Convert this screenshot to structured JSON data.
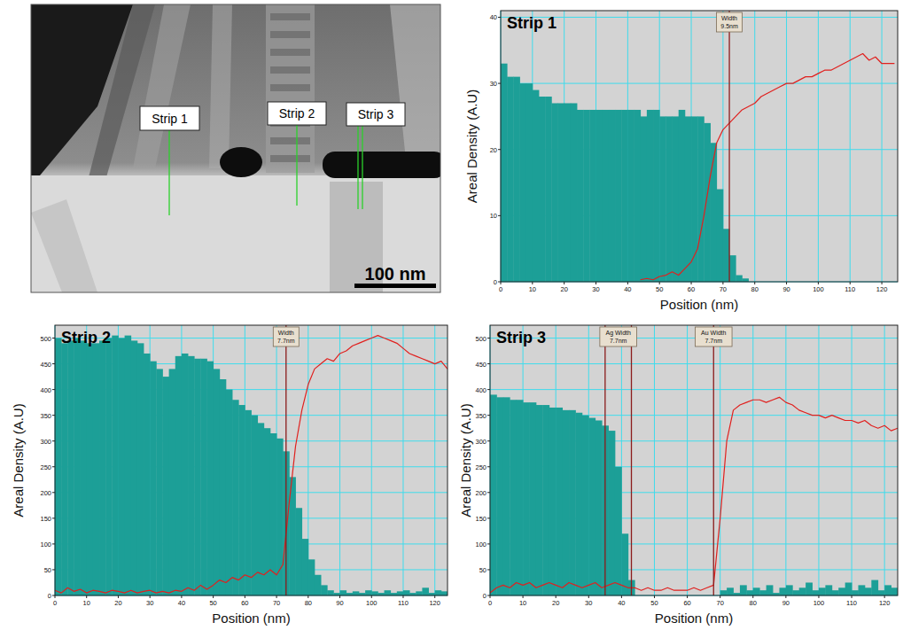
{
  "micrograph": {
    "labels": [
      "Strip 1",
      "Strip 2",
      "Strip 3"
    ],
    "scale_bar": "100 nm"
  },
  "chart_data": [
    {
      "type": "bar",
      "title": "Strip 1",
      "x_label": "Position (nm)",
      "y_label": "Areal Density (A.U)",
      "grid": true,
      "xlim": [
        0,
        125
      ],
      "ylim": [
        0,
        41
      ],
      "xticks": [
        0,
        10,
        20,
        30,
        40,
        50,
        60,
        70,
        80,
        90,
        100,
        110,
        120
      ],
      "yticks": [
        0,
        10,
        20,
        30,
        40
      ],
      "x": [
        0,
        2,
        4,
        6,
        8,
        10,
        12,
        14,
        16,
        18,
        20,
        22,
        24,
        26,
        28,
        30,
        32,
        34,
        36,
        38,
        40,
        42,
        44,
        46,
        48,
        50,
        52,
        54,
        56,
        58,
        60,
        62,
        64,
        66,
        68,
        70,
        72,
        74,
        76,
        78,
        80,
        82,
        84,
        86,
        88,
        90,
        92,
        94,
        96,
        98,
        100,
        102,
        104,
        106,
        108,
        110,
        112,
        114,
        116,
        118,
        120,
        122,
        124
      ],
      "series": [
        {
          "type": "bar",
          "color": "#1c9f97",
          "values": [
            33,
            31,
            31,
            30,
            30,
            29,
            28,
            28,
            27,
            27,
            27,
            27,
            26,
            26,
            26,
            26,
            26,
            26,
            26,
            26,
            26,
            26,
            25,
            26,
            26,
            25,
            25,
            25,
            26,
            25,
            25,
            25,
            24,
            21,
            14,
            8,
            4,
            1,
            0.5,
            0,
            0,
            0,
            0,
            0,
            0,
            0,
            0,
            0,
            0,
            0,
            0,
            0,
            0,
            0,
            0,
            0,
            0,
            0,
            0,
            0,
            0,
            0,
            0
          ]
        },
        {
          "type": "line",
          "color": "#e0201e",
          "values": [
            null,
            null,
            null,
            null,
            null,
            null,
            null,
            null,
            null,
            null,
            null,
            null,
            null,
            null,
            null,
            null,
            null,
            null,
            null,
            null,
            null,
            null,
            0.3,
            0.5,
            0.3,
            0.8,
            1,
            1.5,
            1,
            2,
            3,
            5,
            10,
            16,
            21,
            23,
            24,
            25,
            26,
            26.5,
            27,
            28,
            28.5,
            29,
            29.5,
            30,
            30,
            30.5,
            31,
            31,
            31.5,
            32,
            32,
            32.5,
            33,
            33.5,
            34,
            34.5,
            33.5,
            34,
            33,
            33,
            33
          ]
        }
      ],
      "annotations": [
        {
          "label": [
            "Width",
            "9.5nm"
          ],
          "x": [
            72
          ]
        }
      ]
    },
    {
      "type": "bar",
      "title": "Strip 2",
      "x_label": "Position (nm)",
      "y_label": "Areal Density (A.U)",
      "grid": true,
      "xlim": [
        0,
        124
      ],
      "ylim": [
        0,
        525
      ],
      "xticks": [
        0,
        10,
        20,
        30,
        40,
        50,
        60,
        70,
        80,
        90,
        100,
        110,
        120
      ],
      "yticks": [
        0,
        50,
        100,
        150,
        200,
        250,
        300,
        350,
        400,
        450,
        500
      ],
      "x": [
        0,
        2,
        4,
        6,
        8,
        10,
        12,
        14,
        16,
        18,
        20,
        22,
        24,
        26,
        28,
        30,
        32,
        34,
        36,
        38,
        40,
        42,
        44,
        46,
        48,
        50,
        52,
        54,
        56,
        58,
        60,
        62,
        64,
        66,
        68,
        70,
        72,
        74,
        76,
        78,
        80,
        82,
        84,
        86,
        88,
        90,
        92,
        94,
        96,
        98,
        100,
        102,
        104,
        106,
        108,
        110,
        112,
        114,
        116,
        118,
        120,
        122,
        124
      ],
      "series": [
        {
          "type": "bar",
          "color": "#1c9f97",
          "values": [
            500,
            490,
            495,
            500,
            495,
            490,
            490,
            495,
            500,
            505,
            500,
            505,
            495,
            490,
            470,
            455,
            440,
            425,
            440,
            465,
            470,
            465,
            460,
            460,
            455,
            440,
            420,
            400,
            380,
            370,
            360,
            350,
            335,
            325,
            315,
            305,
            280,
            230,
            170,
            110,
            70,
            40,
            20,
            10,
            5,
            10,
            5,
            8,
            5,
            10,
            8,
            5,
            10,
            5,
            8,
            10,
            5,
            8,
            15,
            5,
            10,
            8,
            5
          ]
        },
        {
          "type": "line",
          "color": "#e0201e",
          "values": [
            10,
            5,
            15,
            8,
            12,
            5,
            10,
            8,
            5,
            10,
            8,
            5,
            10,
            5,
            8,
            10,
            5,
            8,
            5,
            10,
            8,
            15,
            10,
            20,
            12,
            20,
            30,
            25,
            35,
            30,
            40,
            35,
            45,
            40,
            50,
            40,
            60,
            180,
            290,
            360,
            410,
            440,
            450,
            460,
            455,
            470,
            475,
            485,
            490,
            495,
            500,
            505,
            500,
            495,
            490,
            480,
            470,
            465,
            460,
            455,
            450,
            455,
            440
          ]
        }
      ],
      "annotations": [
        {
          "label": [
            "Width",
            "7.7nm"
          ],
          "x": [
            73
          ]
        }
      ]
    },
    {
      "type": "bar",
      "title": "Strip 3",
      "x_label": "Position (nm)",
      "y_label": "Areal Density (A.U)",
      "grid": true,
      "xlim": [
        0,
        124
      ],
      "ylim": [
        0,
        525
      ],
      "xticks": [
        0,
        10,
        20,
        30,
        40,
        50,
        60,
        70,
        80,
        90,
        100,
        110,
        120
      ],
      "yticks": [
        0,
        50,
        100,
        150,
        200,
        250,
        300,
        350,
        400,
        450,
        500
      ],
      "x": [
        0,
        2,
        4,
        6,
        8,
        10,
        12,
        14,
        16,
        18,
        20,
        22,
        24,
        26,
        28,
        30,
        32,
        34,
        36,
        38,
        40,
        42,
        44,
        46,
        48,
        50,
        52,
        54,
        56,
        58,
        60,
        62,
        64,
        66,
        68,
        70,
        72,
        74,
        76,
        78,
        80,
        82,
        84,
        86,
        88,
        90,
        92,
        94,
        96,
        98,
        100,
        102,
        104,
        106,
        108,
        110,
        112,
        114,
        116,
        118,
        120,
        122,
        124
      ],
      "series": [
        {
          "type": "bar",
          "color": "#1c9f97",
          "values": [
            390,
            385,
            385,
            380,
            380,
            375,
            375,
            370,
            370,
            365,
            365,
            360,
            360,
            355,
            350,
            345,
            340,
            330,
            320,
            250,
            120,
            30,
            0,
            0,
            0,
            0,
            0,
            0,
            0,
            0,
            0,
            0,
            0,
            0,
            0,
            10,
            15,
            5,
            20,
            10,
            15,
            10,
            20,
            5,
            15,
            20,
            10,
            15,
            25,
            10,
            15,
            20,
            10,
            15,
            25,
            10,
            20,
            15,
            30,
            10,
            20,
            15,
            25
          ]
        },
        {
          "type": "line",
          "color": "#e0201e",
          "values": [
            5,
            15,
            20,
            15,
            25,
            20,
            25,
            15,
            20,
            25,
            20,
            15,
            25,
            20,
            15,
            20,
            25,
            15,
            20,
            25,
            20,
            15,
            15,
            10,
            15,
            10,
            10,
            15,
            10,
            10,
            10,
            15,
            10,
            15,
            20,
            150,
            300,
            360,
            370,
            375,
            380,
            380,
            375,
            380,
            385,
            375,
            370,
            360,
            355,
            350,
            350,
            345,
            350,
            345,
            340,
            340,
            335,
            340,
            330,
            325,
            330,
            320,
            325
          ]
        }
      ],
      "annotations": [
        {
          "label": [
            "Ag Width",
            "7.7nm"
          ],
          "x": [
            35,
            43
          ]
        },
        {
          "label": [
            "Au Width",
            "7.7nm"
          ],
          "x": [
            68
          ]
        }
      ]
    }
  ]
}
